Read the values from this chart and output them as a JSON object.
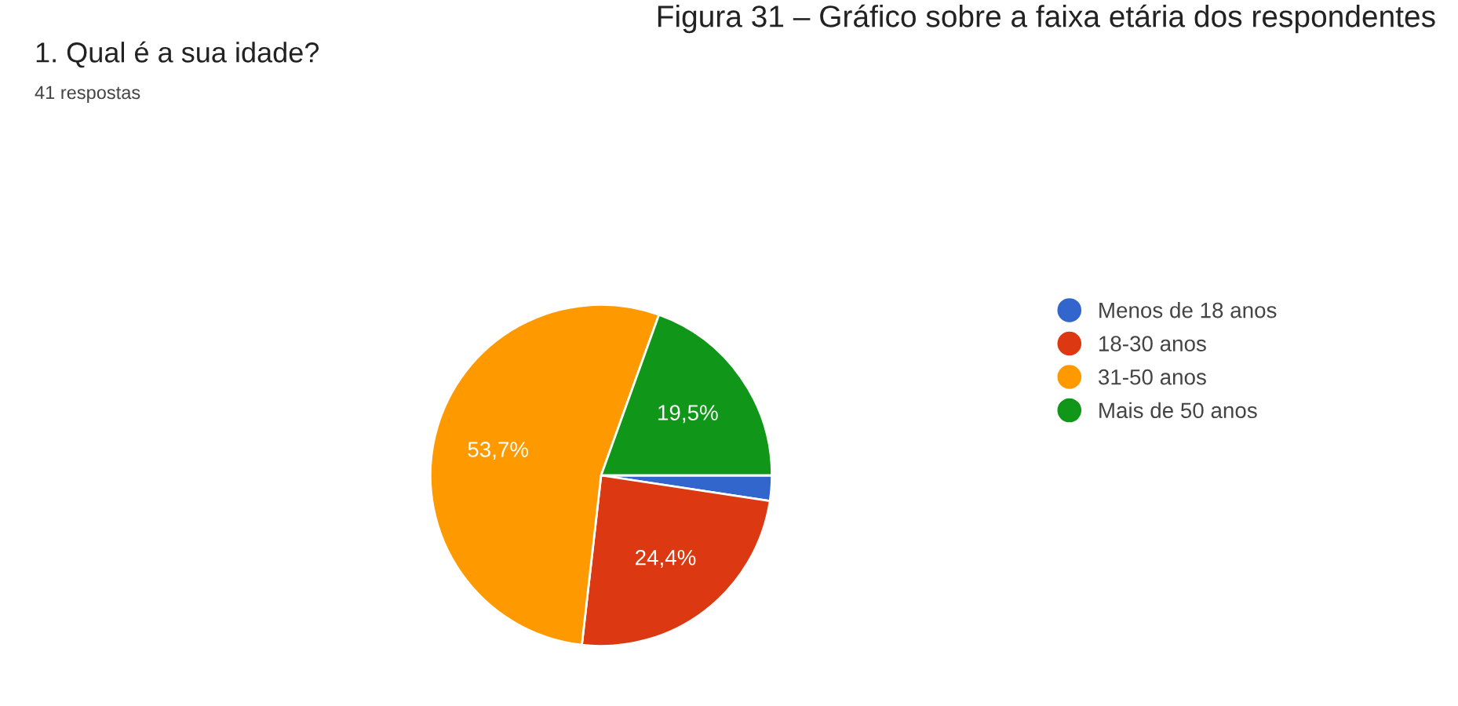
{
  "chart_data": {
    "type": "pie",
    "title": "1. Qual é a sua idade?",
    "subtitle": "41 respostas",
    "annotations": [
      "Figura 31 – Gráfico sobre a faixa etária dos respondentes"
    ],
    "categories": [
      "Menos de 18 anos",
      "18-30 anos",
      "31-50 anos",
      "Mais de 50 anos"
    ],
    "values": [
      2.4,
      24.4,
      53.7,
      19.5
    ],
    "colors": [
      "#3366cc",
      "#dc3912",
      "#ff9900",
      "#109618"
    ],
    "value_labels": [
      null,
      "24,4%",
      "53,7%",
      "19,5%"
    ],
    "legend": "right"
  }
}
